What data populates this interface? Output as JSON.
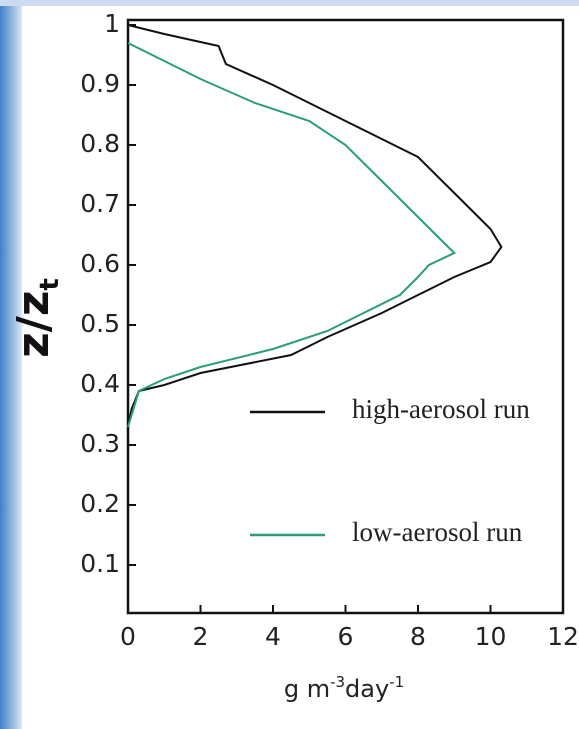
{
  "chart_data": {
    "type": "line",
    "ylabel": "z/z",
    "ylabel_subscript": "t",
    "xlabel": [
      "g m",
      "-3",
      "day",
      "-1"
    ],
    "xlim": [
      0,
      12
    ],
    "xticks": [
      0,
      2,
      4,
      6,
      8,
      10,
      12
    ],
    "ylim": [
      0.02,
      1
    ],
    "yticks": [
      0.1,
      0.2,
      0.3,
      0.4,
      0.5,
      0.6,
      0.7,
      0.8,
      0.9,
      1
    ],
    "series": [
      {
        "name": "high-aerosol run",
        "color": "#111111",
        "x": [
          0,
          0.1,
          0.3,
          1,
          2,
          4.5,
          5.5,
          7,
          8,
          9,
          10,
          10.3,
          10,
          9.5,
          9,
          8.5,
          8,
          7,
          6,
          5,
          4,
          2.7,
          2.5,
          1,
          0
        ],
        "y": [
          0.33,
          0.36,
          0.39,
          0.4,
          0.42,
          0.45,
          0.48,
          0.52,
          0.55,
          0.58,
          0.605,
          0.63,
          0.66,
          0.69,
          0.72,
          0.75,
          0.78,
          0.81,
          0.84,
          0.87,
          0.9,
          0.935,
          0.965,
          0.985,
          1
        ]
      },
      {
        "name": "low-aerosol run",
        "color": "#2a9d7a",
        "x": [
          0,
          0.3,
          1,
          2,
          4,
          5.5,
          6.5,
          7.5,
          8,
          8.3,
          9,
          8.5,
          8,
          7.5,
          7,
          6,
          5,
          3.5,
          2,
          1,
          0
        ],
        "y": [
          0.33,
          0.39,
          0.41,
          0.43,
          0.46,
          0.49,
          0.52,
          0.55,
          0.58,
          0.6,
          0.62,
          0.65,
          0.68,
          0.71,
          0.74,
          0.8,
          0.84,
          0.87,
          0.91,
          0.94,
          0.97
        ]
      }
    ]
  }
}
